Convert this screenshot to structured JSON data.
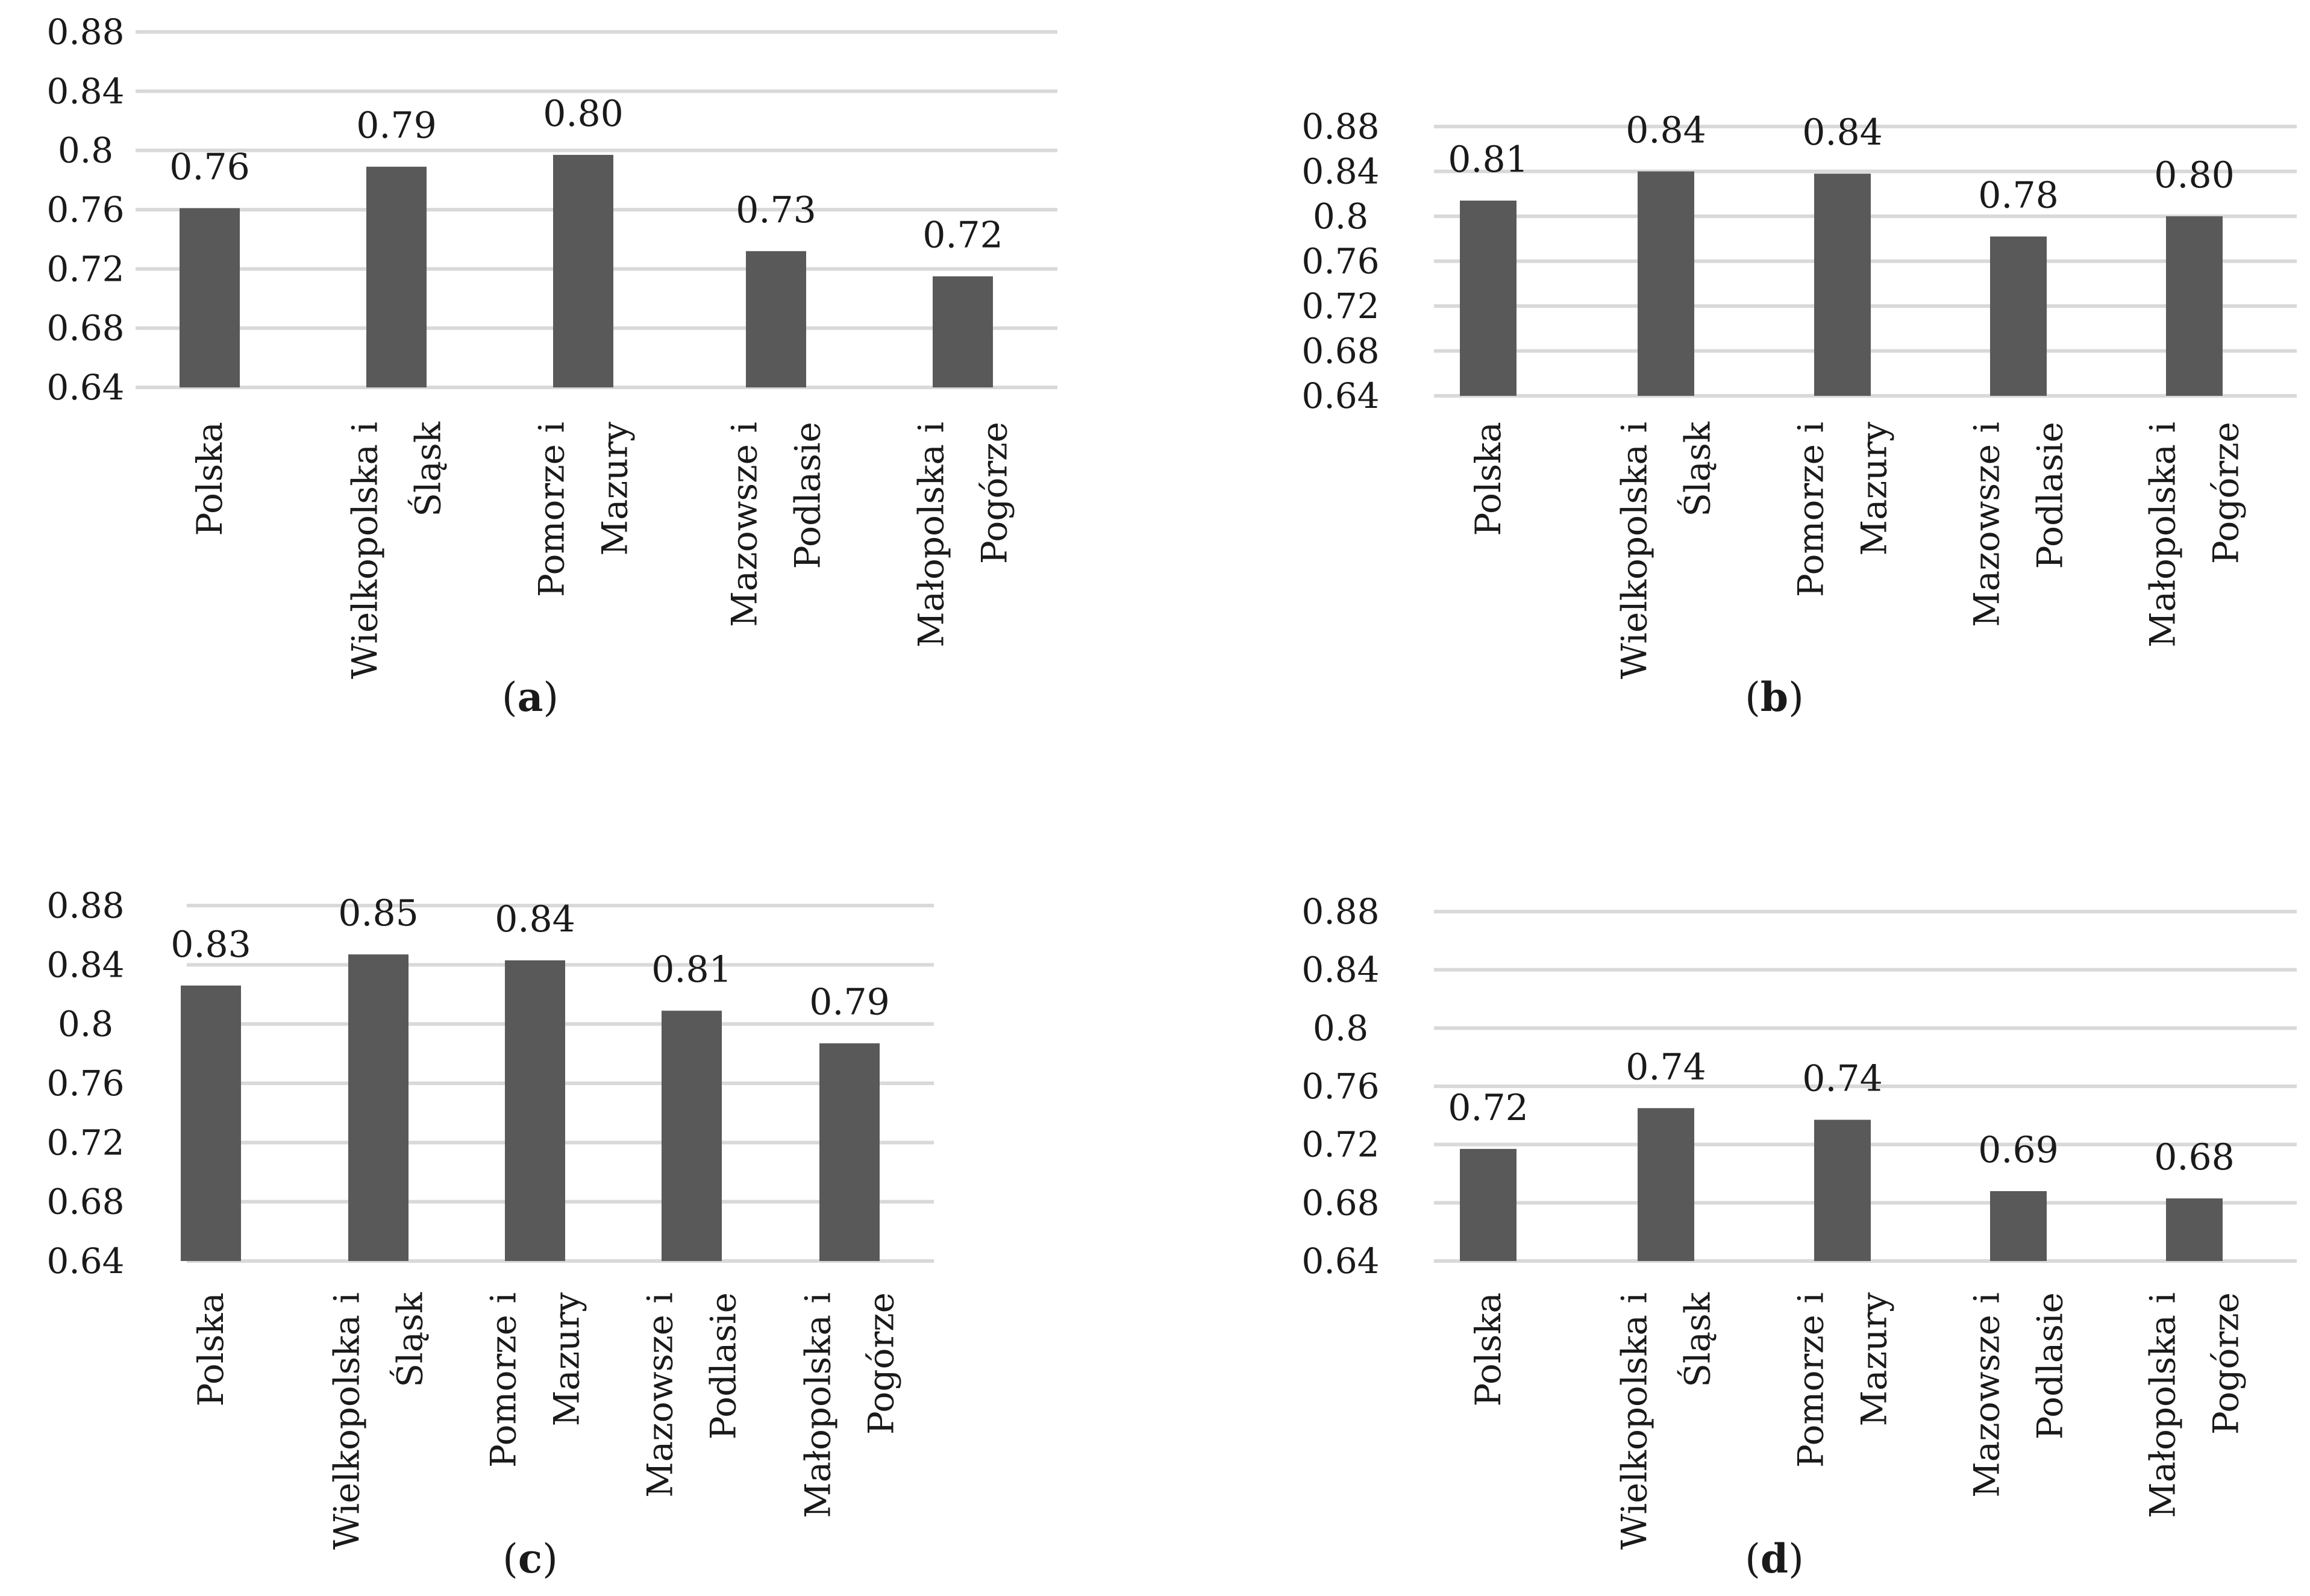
{
  "chart_data": [
    {
      "type": "bar",
      "panel_label": "a",
      "categories": [
        [
          "Polska"
        ],
        [
          "Wielkopolska i",
          "Śląsk"
        ],
        [
          "Pomorze i",
          "Mazury"
        ],
        [
          "Mazowsze i",
          "Podlasie"
        ],
        [
          "Małopolska i",
          "Pogórze"
        ]
      ],
      "values": [
        0.761,
        0.789,
        0.797,
        0.732,
        0.715
      ],
      "data_labels": [
        "0.76",
        "0.79",
        "0.80",
        "0.73",
        "0.72"
      ],
      "yticks": [
        "0.64",
        "0.68",
        "0.72",
        "0.76",
        "0.8",
        "0.84",
        "0.88"
      ],
      "ylim": [
        0.64,
        0.88
      ]
    },
    {
      "type": "bar",
      "panel_label": "b",
      "categories": [
        [
          "Polska"
        ],
        [
          "Wielkopolska i",
          "Śląsk"
        ],
        [
          "Pomorze i",
          "Mazury"
        ],
        [
          "Mazowsze i",
          "Podlasie"
        ],
        [
          "Małopolska i",
          "Pogórze"
        ]
      ],
      "values": [
        0.814,
        0.84,
        0.838,
        0.782,
        0.8
      ],
      "data_labels": [
        "0.81",
        "0.84",
        "0.84",
        "0.78",
        "0.80"
      ],
      "yticks": [
        "0.64",
        "0.68",
        "0.72",
        "0.76",
        "0.8",
        "0.84",
        "0.88"
      ],
      "ylim": [
        0.64,
        0.88
      ]
    },
    {
      "type": "bar",
      "panel_label": "c",
      "categories": [
        [
          "Polska"
        ],
        [
          "Wielkopolska i",
          "Śląsk"
        ],
        [
          "Pomorze i",
          "Mazury"
        ],
        [
          "Mazowsze i",
          "Podlasie"
        ],
        [
          "Małopolska i",
          "Pogórze"
        ]
      ],
      "values": [
        0.826,
        0.847,
        0.843,
        0.809,
        0.787
      ],
      "data_labels": [
        "0.83",
        "0.85",
        "0.84",
        "0.81",
        "0.79"
      ],
      "yticks": [
        "0.64",
        "0.68",
        "0.72",
        "0.76",
        "0.8",
        "0.84",
        "0.88"
      ],
      "ylim": [
        0.64,
        0.88
      ]
    },
    {
      "type": "bar",
      "panel_label": "d",
      "categories": [
        [
          "Polska"
        ],
        [
          "Wielkopolska i",
          "Śląsk"
        ],
        [
          "Pomorze i",
          "Mazury"
        ],
        [
          "Mazowsze i",
          "Podlasie"
        ],
        [
          "Małopolska i",
          "Pogórze"
        ]
      ],
      "values": [
        0.717,
        0.745,
        0.737,
        0.688,
        0.683
      ],
      "data_labels": [
        "0.72",
        "0.74",
        "0.74",
        "0.69",
        "0.68"
      ],
      "yticks": [
        "0.64",
        "0.68",
        "0.72",
        "0.76",
        "0.8",
        "0.84",
        "0.88"
      ],
      "ylim": [
        0.64,
        0.88
      ]
    }
  ],
  "colors": {
    "bar": "#595959",
    "grid": "#d9d9d9"
  }
}
